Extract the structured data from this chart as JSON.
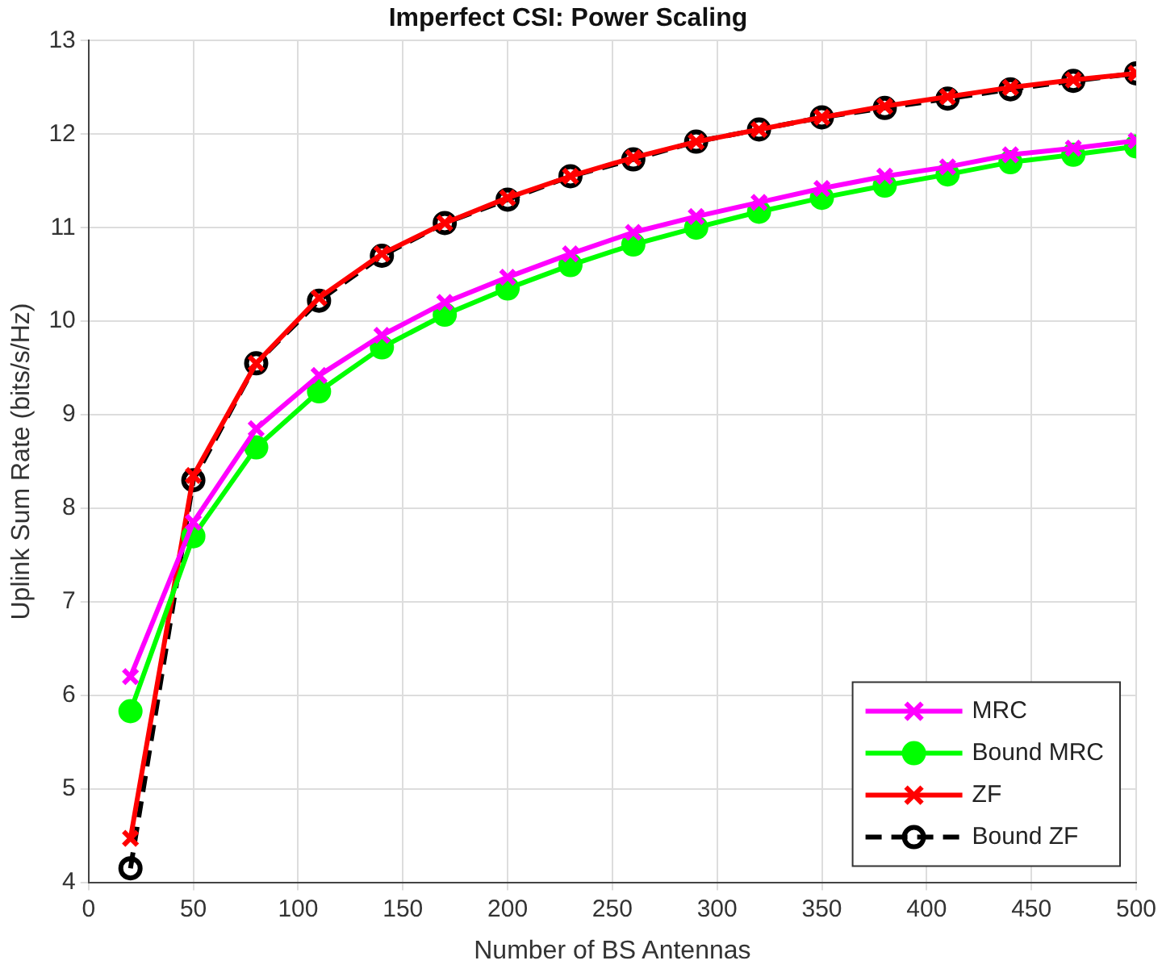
{
  "chart_data": {
    "type": "line",
    "title": "Imperfect CSI: Power Scaling",
    "xlabel": "Number of BS Antennas",
    "ylabel": "Uplink Sum Rate (bits/s/Hz)",
    "x": [
      20,
      50,
      80,
      110,
      140,
      170,
      200,
      230,
      260,
      290,
      320,
      350,
      380,
      410,
      440,
      470,
      500
    ],
    "xlim": [
      0,
      500
    ],
    "xticks": [
      0,
      50,
      100,
      150,
      200,
      250,
      300,
      350,
      400,
      450,
      500
    ],
    "ylim": [
      4,
      13
    ],
    "yticks": [
      4,
      5,
      6,
      7,
      8,
      9,
      10,
      11,
      12,
      13
    ],
    "grid": true,
    "legend": "bottom right",
    "series": [
      {
        "name": "MRC",
        "color": "#ff00ff",
        "marker": "cross",
        "line_style": "solid",
        "values": [
          6.2,
          7.85,
          8.85,
          9.42,
          9.85,
          10.2,
          10.47,
          10.72,
          10.95,
          11.12,
          11.27,
          11.42,
          11.55,
          11.65,
          11.78,
          11.85,
          11.93
        ]
      },
      {
        "name": "Bound MRC",
        "color": "#00ff00",
        "marker": "circle",
        "line_style": "solid",
        "values": [
          5.83,
          7.7,
          8.65,
          9.25,
          9.72,
          10.07,
          10.35,
          10.6,
          10.82,
          11.0,
          11.17,
          11.32,
          11.45,
          11.57,
          11.7,
          11.78,
          11.87
        ]
      },
      {
        "name": "ZF",
        "color": "#ff0000",
        "marker": "cross",
        "line_style": "solid",
        "values": [
          4.47,
          8.35,
          9.55,
          10.25,
          10.72,
          11.05,
          11.32,
          11.55,
          11.75,
          11.92,
          12.05,
          12.18,
          12.3,
          12.4,
          12.5,
          12.58,
          12.65
        ]
      },
      {
        "name": "Bound ZF",
        "color": "#000000",
        "marker": "circle",
        "line_style": "dashed",
        "values": [
          4.15,
          8.3,
          9.55,
          10.22,
          10.7,
          11.05,
          11.3,
          11.55,
          11.73,
          11.92,
          12.05,
          12.18,
          12.28,
          12.38,
          12.48,
          12.57,
          12.65
        ]
      }
    ]
  }
}
